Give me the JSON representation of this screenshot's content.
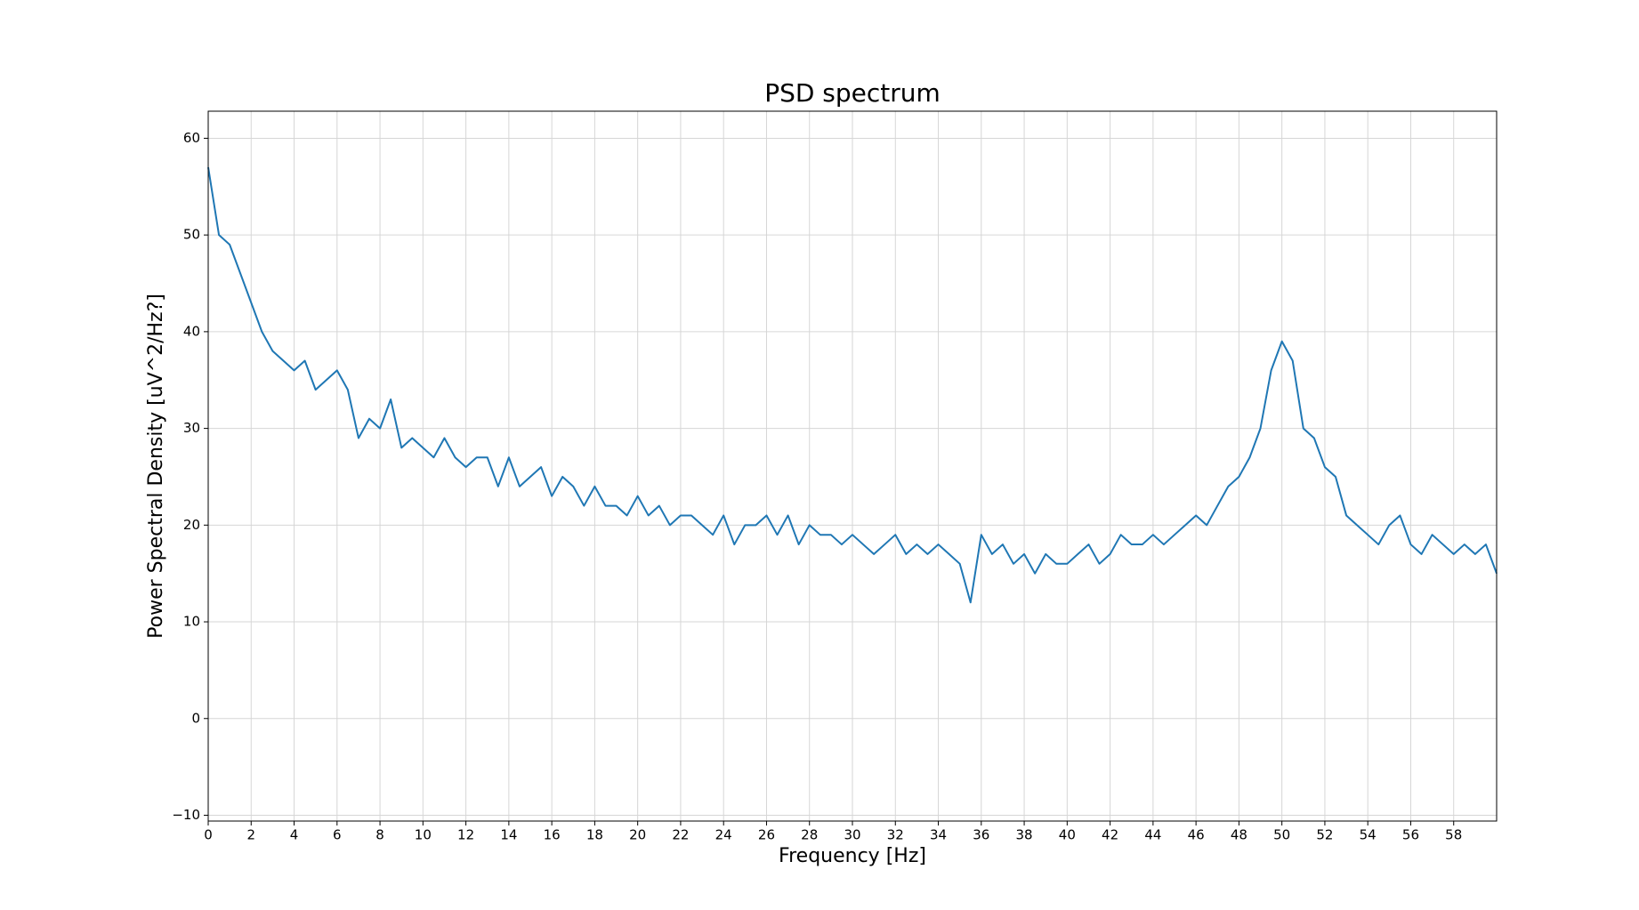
{
  "chart_data": {
    "type": "line",
    "title": "PSD spectrum",
    "x_label": "Frequency [Hz]",
    "y_label": "Power Spectral Density [uV^2/Hz?]",
    "x": [
      0,
      0.5,
      1,
      1.5,
      2,
      2.5,
      3,
      3.5,
      4,
      4.5,
      5,
      5.5,
      6,
      6.5,
      7,
      7.5,
      8,
      8.5,
      9,
      9.5,
      10,
      10.5,
      11,
      11.5,
      12,
      12.5,
      13,
      13.5,
      14,
      14.5,
      15,
      15.5,
      16,
      16.5,
      17,
      17.5,
      18,
      18.5,
      19,
      19.5,
      20,
      20.5,
      21,
      21.5,
      22,
      22.5,
      23,
      23.5,
      24,
      24.5,
      25,
      25.5,
      26,
      26.5,
      27,
      27.5,
      28,
      28.5,
      29,
      29.5,
      30,
      30.5,
      31,
      31.5,
      32,
      32.5,
      33,
      33.5,
      34,
      34.5,
      35,
      35.5,
      36,
      36.5,
      37,
      37.5,
      38,
      38.5,
      39,
      39.5,
      40,
      40.5,
      41,
      41.5,
      42,
      42.5,
      43,
      43.5,
      44,
      44.5,
      45,
      45.5,
      46,
      46.5,
      47,
      47.5,
      48,
      48.5,
      49,
      49.5,
      50,
      50.5,
      51,
      51.5,
      52,
      52.5,
      53,
      53.5,
      54,
      54.5,
      55,
      55.5,
      56,
      56.5,
      57,
      57.5,
      58,
      58.5,
      59,
      59.5,
      60
    ],
    "values": [
      57,
      50,
      49,
      46,
      43,
      40,
      38,
      37,
      36,
      37,
      34,
      35,
      36,
      34,
      29,
      31,
      30,
      33,
      28,
      29,
      28,
      27,
      29,
      27,
      26,
      27,
      27,
      24,
      27,
      24,
      25,
      26,
      23,
      25,
      24,
      22,
      24,
      22,
      22,
      21,
      23,
      21,
      22,
      20,
      21,
      21,
      20,
      19,
      21,
      18,
      20,
      20,
      21,
      19,
      21,
      18,
      20,
      19,
      19,
      18,
      19,
      18,
      17,
      18,
      19,
      17,
      18,
      17,
      18,
      17,
      16,
      12,
      19,
      17,
      18,
      16,
      17,
      15,
      17,
      16,
      16,
      17,
      18,
      16,
      17,
      19,
      18,
      18,
      19,
      18,
      19,
      20,
      21,
      20,
      22,
      24,
      25,
      27,
      30,
      36,
      39,
      37,
      30,
      29,
      26,
      25,
      21,
      20,
      19,
      18,
      20,
      21,
      18,
      17,
      19,
      18,
      17,
      18,
      17,
      18,
      15
    ],
    "color": "#1f77b4",
    "xlim": [
      0,
      60
    ],
    "ylim": [
      -10.6,
      62.8
    ],
    "xticks": [
      0,
      2,
      4,
      6,
      8,
      10,
      12,
      14,
      16,
      18,
      20,
      22,
      24,
      26,
      28,
      30,
      32,
      34,
      36,
      38,
      40,
      42,
      44,
      46,
      48,
      50,
      52,
      54,
      56,
      58
    ],
    "yticks": [
      {
        "value": -10,
        "label": "−10"
      },
      0,
      10,
      20,
      30,
      40,
      50,
      60
    ],
    "grid": true
  }
}
